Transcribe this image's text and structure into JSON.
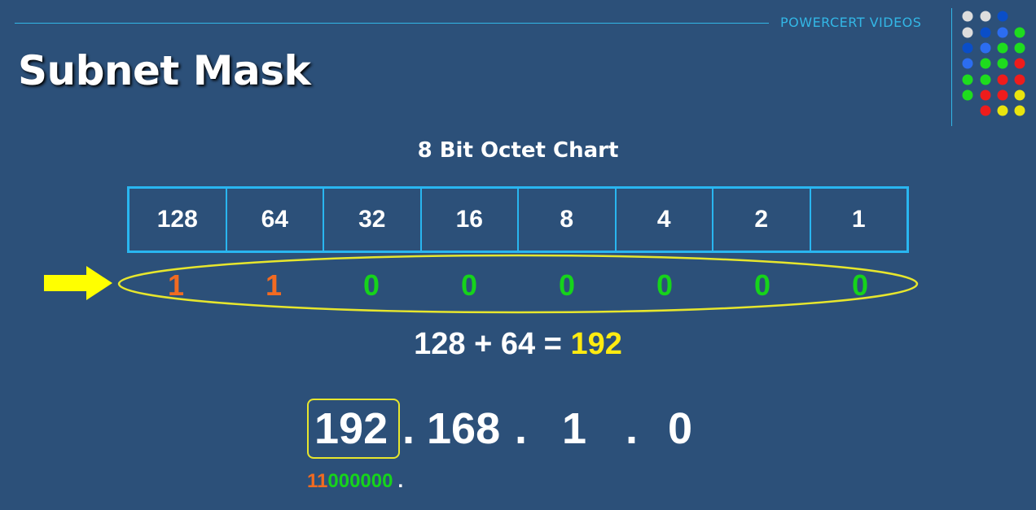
{
  "brand": "POWERCERT VIDEOS",
  "title": "Subnet Mask",
  "chart_title": "8 Bit Octet Chart",
  "octet_values": [
    "128",
    "64",
    "32",
    "16",
    "8",
    "4",
    "2",
    "1"
  ],
  "bits": [
    "1",
    "1",
    "0",
    "0",
    "0",
    "0",
    "0",
    "0"
  ],
  "sum": {
    "expression": "128 + 64 =",
    "result": "192"
  },
  "ip": {
    "octet1": "192",
    "octet2": "168",
    "octet3": "1",
    "octet4": "0",
    "separator": "."
  },
  "binary": {
    "ones": "11",
    "zeros": "000000",
    "dot": "."
  },
  "colors": {
    "background": "#2c5079",
    "accent_blue": "#29b6f0",
    "bit_on": "#f26b21",
    "bit_off": "#16d31b",
    "highlight_yellow": "#ffeb11"
  },
  "icons": {
    "logo_dots": "dot-grid-logo-icon",
    "arrow": "right-arrow-icon"
  }
}
